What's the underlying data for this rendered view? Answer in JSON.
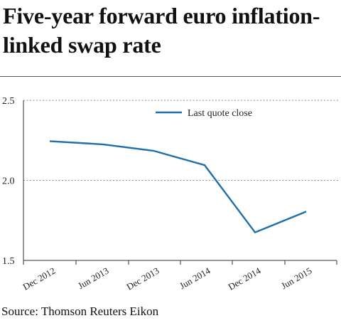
{
  "header": {
    "title": "Five-year forward euro inflation-linked swap rate"
  },
  "footer": {
    "source": "Source: Thomson Reuters Eikon"
  },
  "chart_data": {
    "type": "line",
    "title": "Five-year forward euro inflation-linked swap rate",
    "xlabel": "",
    "ylabel": "",
    "ylim": [
      1.5,
      2.5
    ],
    "yticks": [
      1.5,
      2.0,
      2.5
    ],
    "ytick_labels": [
      "1.5",
      "2.0",
      "2.5"
    ],
    "grid": "horizontal-dotted",
    "legend_position": "top-center",
    "x": [
      "Dec 2012",
      "Jun 2013",
      "Dec 2013",
      "Jun 2014",
      "Dec 2014",
      "Jun 2015"
    ],
    "series": [
      {
        "name": "Last quote close",
        "color": "#1f6fae",
        "values": [
          2.245,
          2.225,
          2.185,
          2.095,
          1.675,
          1.805
        ]
      }
    ]
  }
}
